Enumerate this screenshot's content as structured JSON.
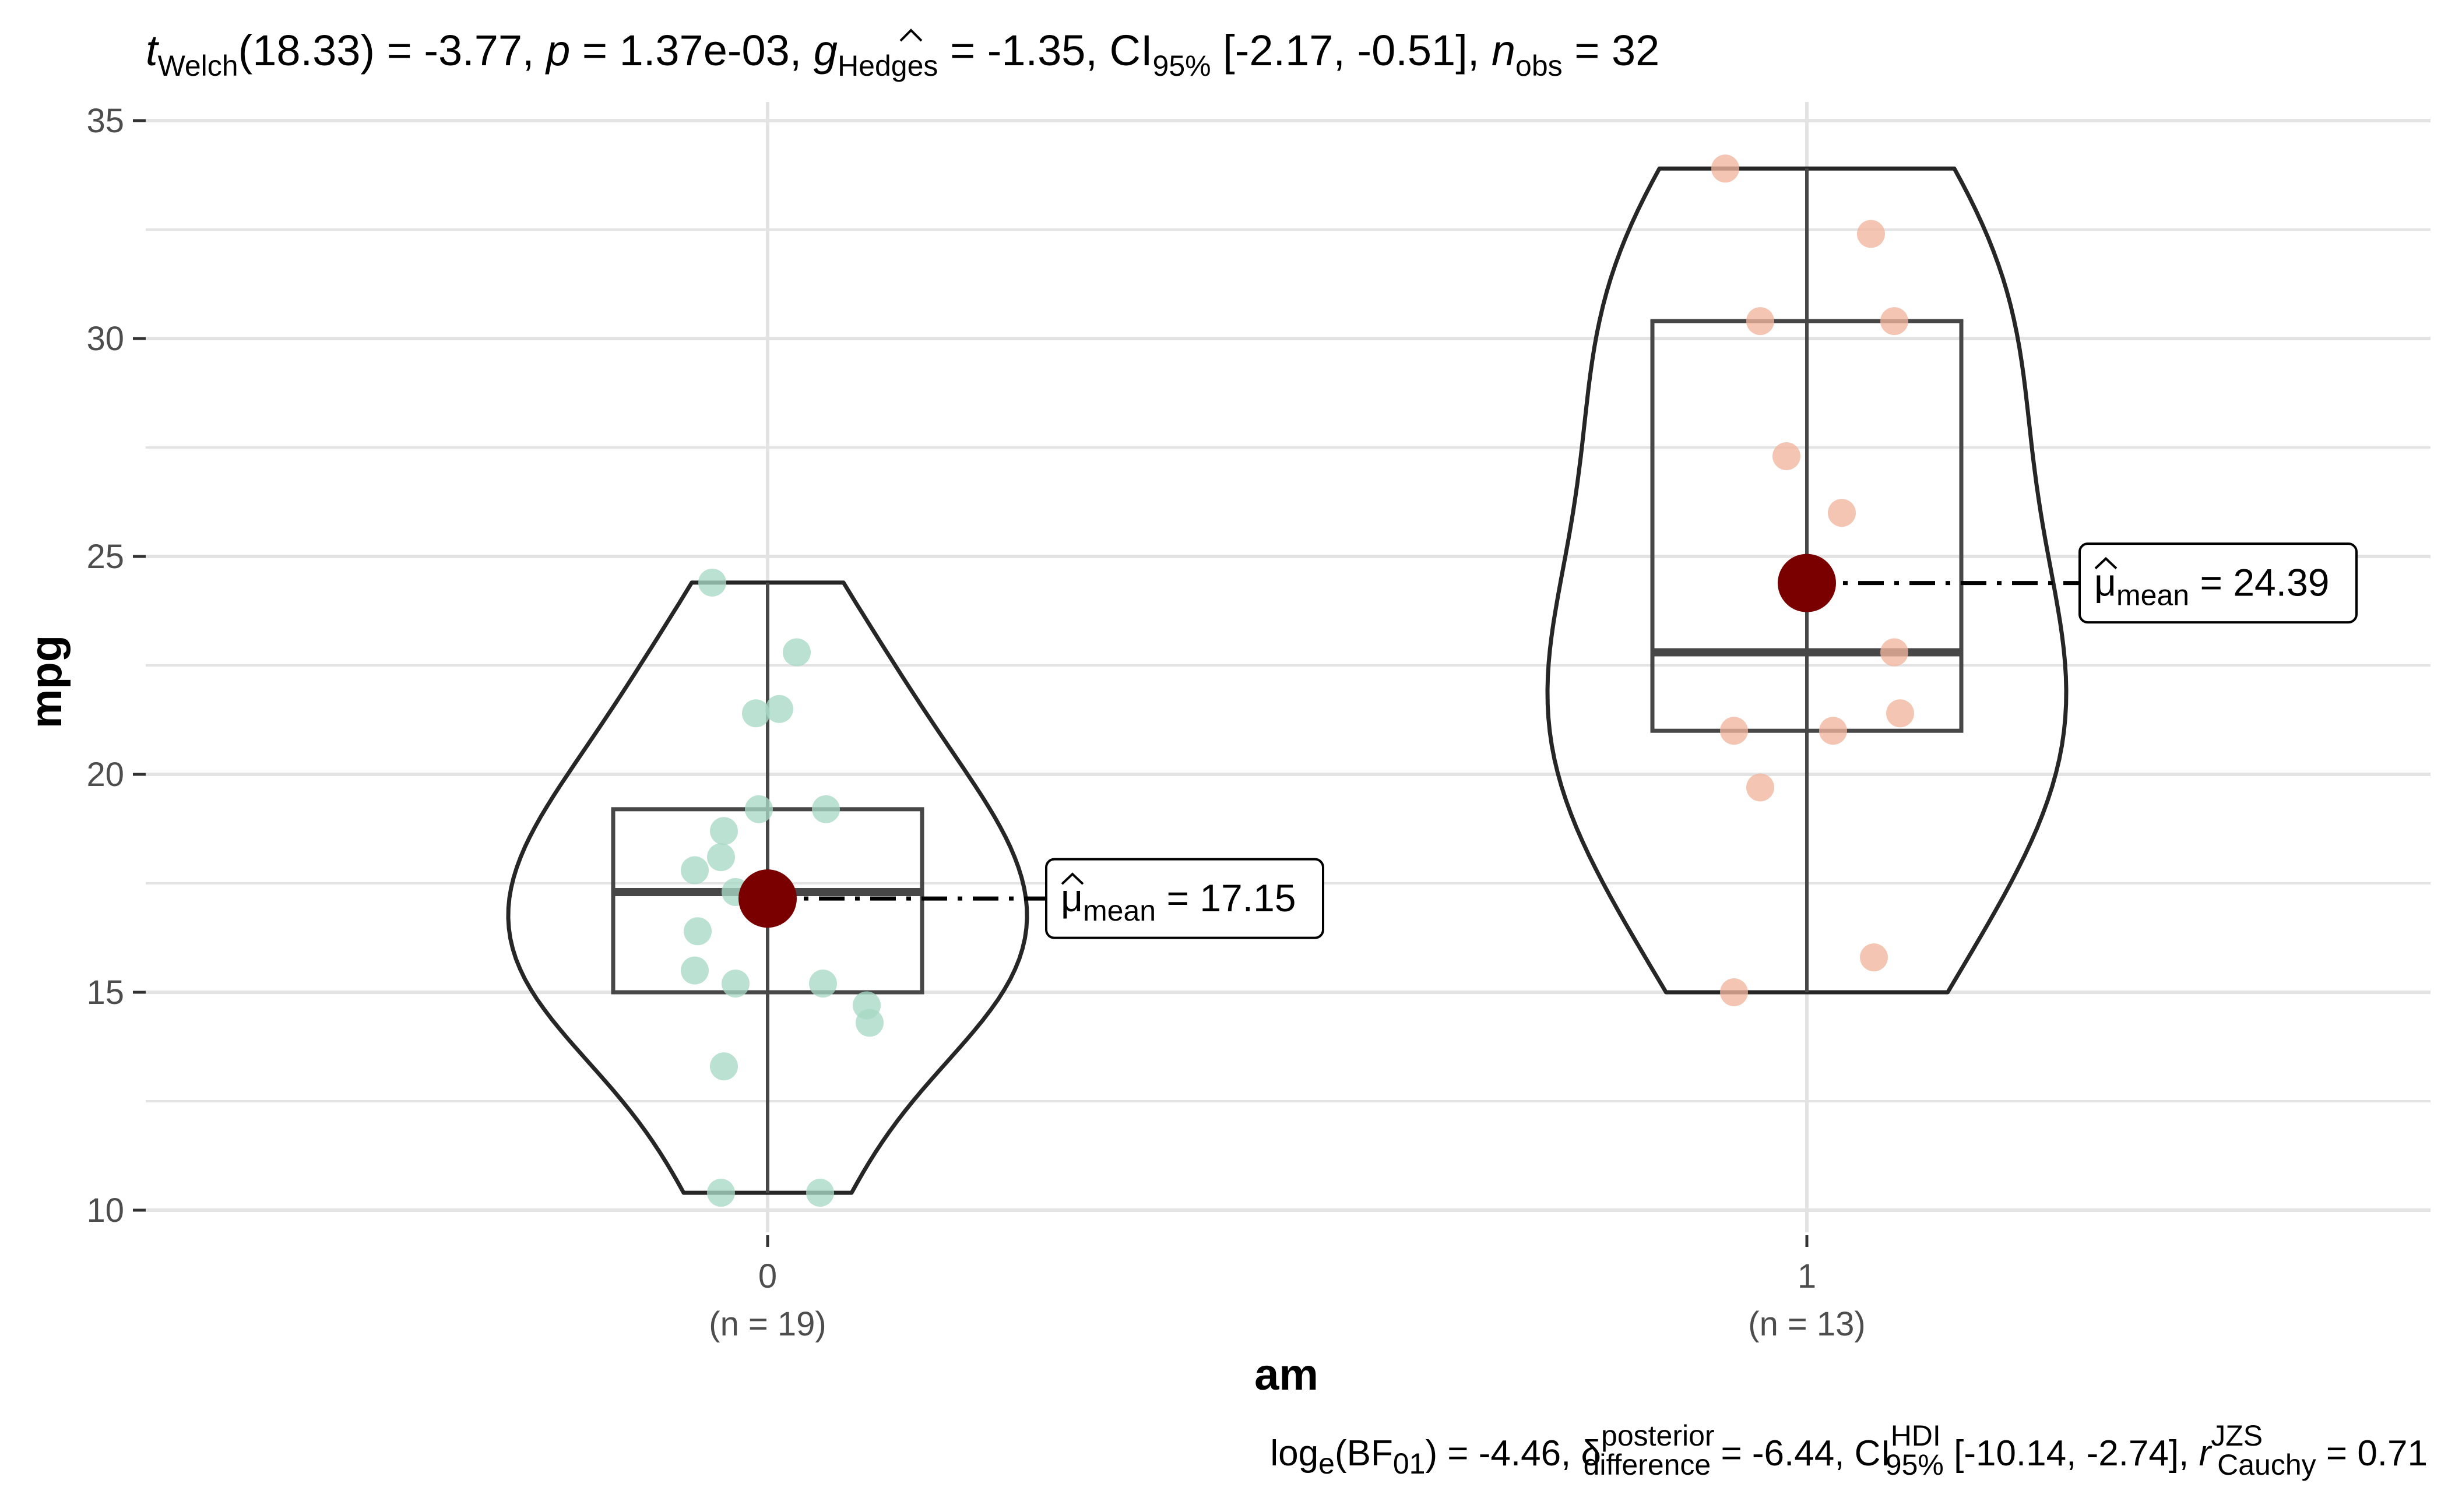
{
  "chart_data": {
    "type": "violin-box-scatter",
    "subtitle": {
      "t_label": "t",
      "t_sub": "Welch",
      "df": "(18.33)",
      "t_value": " = -3.77, ",
      "p_label": "p",
      "p_value": " = 1.37e-03, ",
      "g_label": "g",
      "g_sub": "Hedges",
      "g_value": " = -1.35, CI",
      "ci_sub": "95%",
      "ci_value": " [-2.17, -0.51], ",
      "n_label": "n",
      "n_sub": "obs",
      "n_value": " = 32"
    },
    "caption": {
      "part1": "log",
      "part1_sub": "e",
      "part2": "(BF",
      "part2_sub": "01",
      "part3": ") = -4.46, ",
      "delta": "δ",
      "delta_sup": "posterior",
      "delta_sub": "difference",
      "part4": " = -6.44, CI",
      "ci_sup": "HDI",
      "ci_sub": "95%",
      "part5": " [-10.14, -2.74], ",
      "r_label": "r",
      "r_sup": "JZS",
      "r_sub": "Cauchy",
      "part6": " = 0.71"
    },
    "xlabel": "am",
    "ylabel": "mpg",
    "ylim": [
      10,
      35
    ],
    "yticks": [
      10,
      15,
      20,
      25,
      30,
      35
    ],
    "grid": true,
    "categories": [
      {
        "name": "0",
        "n_label": "(n = 19)",
        "color": "#a6d8c4",
        "points": [
          24.4,
          22.8,
          21.5,
          21.4,
          19.2,
          19.2,
          18.7,
          18.1,
          17.8,
          17.3,
          16.4,
          15.5,
          15.2,
          15.2,
          14.7,
          14.3,
          13.3,
          10.4,
          10.4
        ],
        "box": {
          "q1": 15.0,
          "median": 17.3,
          "q3": 19.2,
          "min": 10.4,
          "max": 24.4
        },
        "mean": 17.15,
        "mean_label": "μ",
        "mean_label_sub": "mean",
        "mean_label_value": " = 17.15"
      },
      {
        "name": "1",
        "n_label": "(n = 13)",
        "color": "#efb59c",
        "points": [
          33.9,
          32.4,
          30.4,
          30.4,
          27.3,
          26.0,
          22.8,
          21.4,
          21.0,
          21.0,
          19.7,
          15.8,
          15.0
        ],
        "box": {
          "q1": 21.0,
          "median": 22.8,
          "q3": 30.4,
          "min": 15.0,
          "max": 33.9
        },
        "mean": 24.39,
        "mean_label": "μ",
        "mean_label_sub": "mean",
        "mean_label_value": " = 24.39"
      }
    ],
    "colors": {
      "mean_point": "#7a0000",
      "grid": "#e3e3e3",
      "outline": "#262626"
    }
  }
}
